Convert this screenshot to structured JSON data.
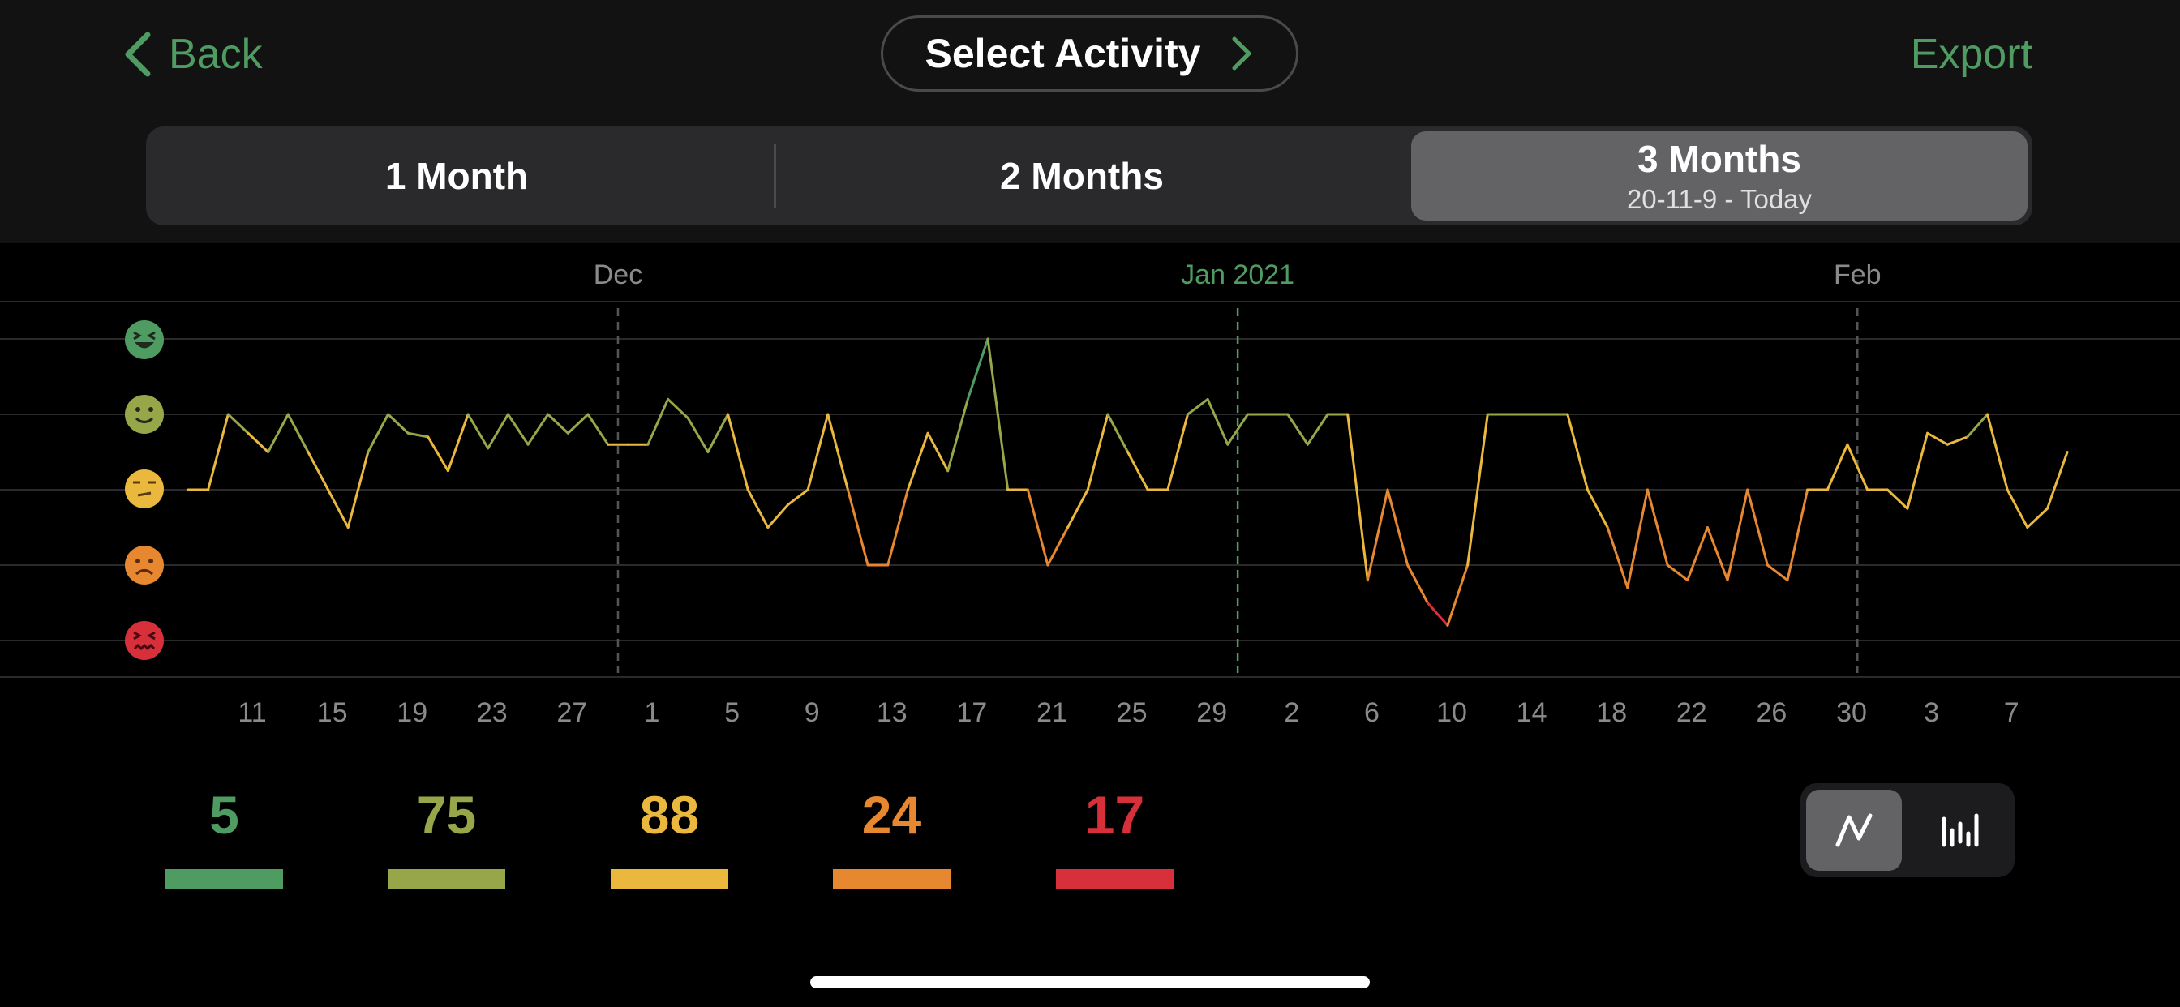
{
  "header": {
    "back_label": "Back",
    "select_activity_label": "Select Activity",
    "export_label": "Export"
  },
  "range_selector": {
    "options": [
      {
        "label": "1 Month",
        "sublabel": "",
        "selected": false
      },
      {
        "label": "2 Months",
        "sublabel": "",
        "selected": false
      },
      {
        "label": "3 Months",
        "sublabel": "20-11-9 - Today",
        "selected": true
      }
    ]
  },
  "mood_levels": [
    {
      "name": "excellent",
      "icon": "laughing-face-icon",
      "color": "#4f9c62"
    },
    {
      "name": "good",
      "icon": "smiling-face-icon",
      "color": "#98a64a"
    },
    {
      "name": "neutral",
      "icon": "neutral-face-icon",
      "color": "#eab83d"
    },
    {
      "name": "bad",
      "icon": "sad-face-icon",
      "color": "#e78730"
    },
    {
      "name": "awful",
      "icon": "angry-face-icon",
      "color": "#d8303a"
    }
  ],
  "chart_data": {
    "type": "line",
    "x_start": "2020-11-09",
    "y_range": [
      1,
      5
    ],
    "y_labels": [
      "awful",
      "bad",
      "neutral",
      "good",
      "excellent"
    ],
    "month_markers": [
      {
        "date": "2020-12-01",
        "label": "Dec",
        "highlight": false
      },
      {
        "date": "2021-01-01",
        "label": "Jan 2021",
        "highlight": true
      },
      {
        "date": "2021-02-01",
        "label": "Feb",
        "highlight": false
      }
    ],
    "x_tick_labels": [
      "11",
      "15",
      "19",
      "23",
      "27",
      "1",
      "5",
      "9",
      "13",
      "17",
      "21",
      "25",
      "29",
      "2",
      "6",
      "10",
      "14",
      "18",
      "22",
      "26",
      "30",
      "3",
      "7"
    ],
    "values": [
      3,
      3,
      4,
      3.75,
      3.5,
      4,
      3.5,
      3,
      2.5,
      3.5,
      4,
      3.75,
      3.7,
      3.25,
      4,
      3.55,
      4,
      3.6,
      4,
      3.75,
      4,
      3.6,
      3.6,
      3.6,
      4.2,
      3.95,
      3.5,
      4,
      3,
      2.5,
      2.8,
      3,
      4,
      3,
      2,
      2,
      3,
      3.75,
      3.25,
      4.2,
      5,
      3,
      3,
      2,
      2.5,
      3,
      4,
      3.5,
      3,
      3,
      4,
      4.2,
      3.6,
      4,
      4,
      4,
      3.6,
      4,
      4,
      1.8,
      3,
      2,
      1.5,
      1.2,
      2,
      4,
      4,
      4,
      4,
      4,
      3,
      2.5,
      1.7,
      3,
      2,
      1.8,
      2.5,
      1.8,
      3,
      2,
      1.8,
      3,
      3,
      3.6,
      3,
      3,
      2.75,
      3.75,
      3.6,
      3.7,
      4,
      3,
      2.5,
      2.75,
      3.5
    ],
    "grid": true
  },
  "summary": {
    "counts": [
      {
        "value": "5",
        "color": "#4f9c62"
      },
      {
        "value": "75",
        "color": "#98a64a"
      },
      {
        "value": "88",
        "color": "#eab83d"
      },
      {
        "value": "24",
        "color": "#e78730"
      },
      {
        "value": "17",
        "color": "#d8303a"
      }
    ]
  },
  "view_toggle": {
    "options": [
      {
        "name": "line-chart-icon",
        "selected": true
      },
      {
        "name": "bar-chart-icon",
        "selected": false
      }
    ]
  }
}
